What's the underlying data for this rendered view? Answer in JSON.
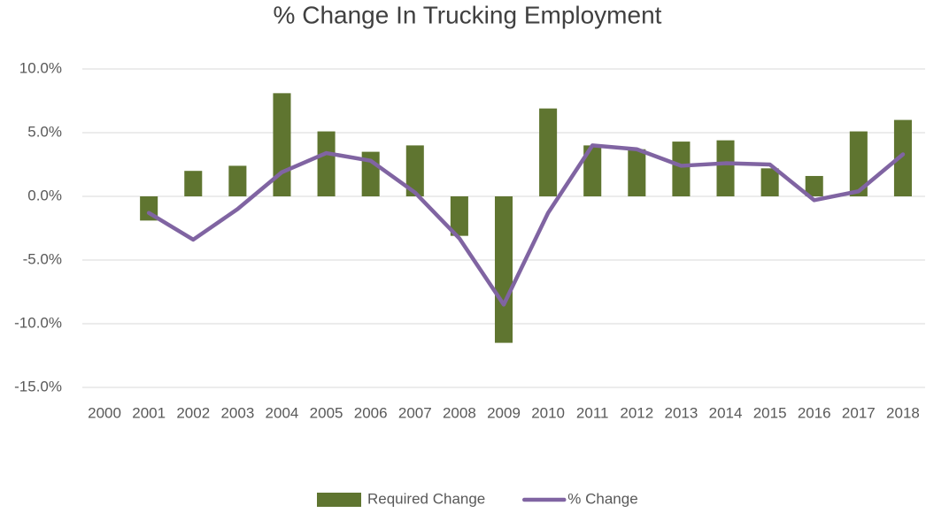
{
  "chart_data": {
    "type": "bar-line",
    "title": "% Change In Trucking Employment",
    "categories": [
      "2000",
      "2001",
      "2002",
      "2003",
      "2004",
      "2005",
      "2006",
      "2007",
      "2008",
      "2009",
      "2010",
      "2011",
      "2012",
      "2013",
      "2014",
      "2015",
      "2016",
      "2017",
      "2018"
    ],
    "series": [
      {
        "name": "Required Change",
        "type": "bar",
        "color": "#5f7530",
        "values": [
          null,
          -1.9,
          2.0,
          2.4,
          8.1,
          5.1,
          3.5,
          4.0,
          -3.1,
          -11.5,
          6.9,
          4.0,
          3.7,
          4.3,
          4.4,
          2.2,
          1.6,
          5.1,
          6.0
        ]
      },
      {
        "name": "% Change",
        "type": "line",
        "color": "#8064a2",
        "values": [
          null,
          -1.3,
          -3.4,
          -1.0,
          1.9,
          3.4,
          2.8,
          0.3,
          -3.3,
          -8.5,
          -1.3,
          4.0,
          3.7,
          2.4,
          2.6,
          2.5,
          -0.3,
          0.4,
          3.3
        ]
      }
    ],
    "ylim": [
      -15,
      10
    ],
    "yticks": [
      {
        "value": -15,
        "label": "-15.0%"
      },
      {
        "value": -10,
        "label": "-10.0%"
      },
      {
        "value": -5,
        "label": "-5.0%"
      },
      {
        "value": 0,
        "label": "0.0%"
      },
      {
        "value": 5,
        "label": "5.0%"
      },
      {
        "value": 10,
        "label": "10.0%"
      }
    ],
    "grid": true,
    "legend": "bottom"
  }
}
